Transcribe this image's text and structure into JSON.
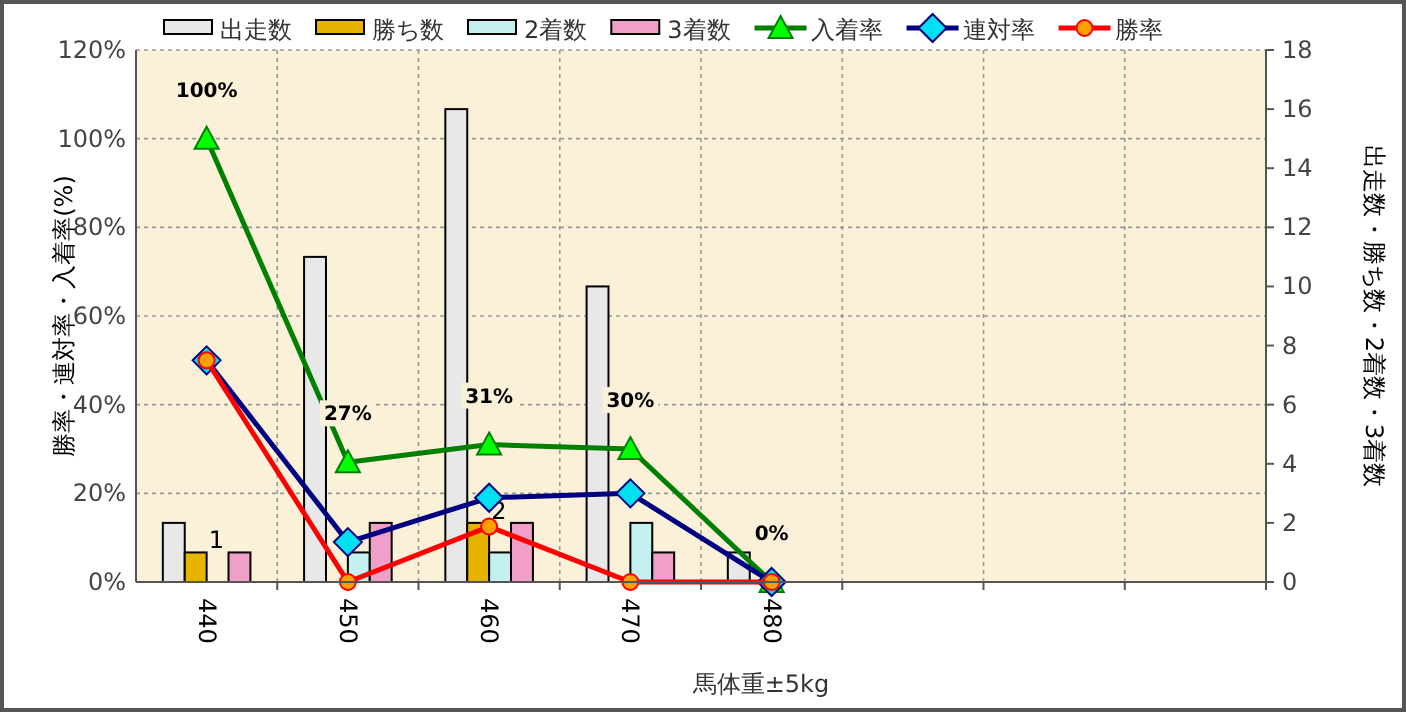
{
  "chart_data": {
    "type": "bar",
    "xlabel": "馬体重±5kg",
    "ylabel": "勝率・連対率・入着率(%)",
    "y2label": "出走数・勝ち数・2着数・3着数",
    "categories": [
      "440",
      "450",
      "460",
      "470",
      "480",
      null,
      null,
      null
    ],
    "ylim": [
      0,
      120
    ],
    "yticks": [
      {
        "value": 0,
        "label": "0%"
      },
      {
        "value": 20,
        "label": "20%"
      },
      {
        "value": 40,
        "label": "40%"
      },
      {
        "value": 60,
        "label": "60%"
      },
      {
        "value": 80,
        "label": "80%"
      },
      {
        "value": 100,
        "label": "100%"
      },
      {
        "value": 120,
        "label": "120%"
      }
    ],
    "y2lim": [
      0,
      18
    ],
    "y2ticks": [
      0,
      2,
      4,
      6,
      8,
      10,
      12,
      14,
      16,
      18
    ],
    "grid": true,
    "legend": "top",
    "series": [
      {
        "name": "出走数",
        "axis": "y2",
        "color": "#e8e8e8",
        "values": [
          2,
          11,
          16,
          10,
          1,
          null,
          null,
          null
        ]
      },
      {
        "name": "勝ち数",
        "axis": "y2",
        "color": "#e6b400",
        "values": [
          1,
          0,
          2,
          0,
          0,
          null,
          null,
          null
        ],
        "value_labels": [
          "1",
          null,
          "2",
          null,
          null,
          null,
          null,
          null
        ]
      },
      {
        "name": "2着数",
        "axis": "y2",
        "color": "#c4f0f0",
        "values": [
          0,
          1,
          1,
          2,
          0,
          null,
          null,
          null
        ]
      },
      {
        "name": "3着数",
        "axis": "y2",
        "color": "#f0a0c8",
        "values": [
          1,
          2,
          2,
          1,
          0,
          null,
          null,
          null
        ]
      },
      {
        "name": "入着率",
        "type": "line",
        "color": "#008000",
        "marker": "triangle",
        "values": [
          100,
          27,
          31,
          30,
          0,
          null,
          null,
          null
        ],
        "value_labels": [
          "100%",
          "27%",
          "31%",
          "30%",
          "0%",
          null,
          null,
          null
        ]
      },
      {
        "name": "連対率",
        "type": "line",
        "color": "#000080",
        "marker": "diamond",
        "values": [
          50,
          9,
          19,
          20,
          0,
          null,
          null,
          null
        ]
      },
      {
        "name": "勝率",
        "type": "line",
        "color": "#ff0000",
        "marker": "circle",
        "values": [
          50,
          0,
          12.5,
          0,
          0,
          null,
          null,
          null
        ]
      }
    ]
  }
}
